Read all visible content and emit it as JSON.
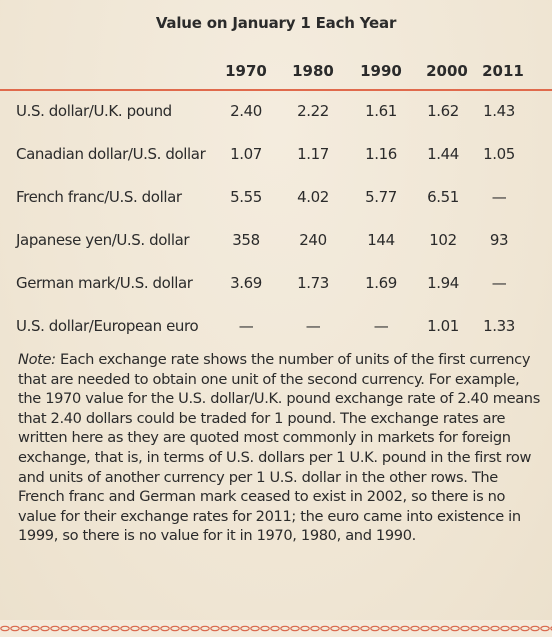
{
  "title": "Value on January 1 Each Year",
  "years": [
    "1970",
    "1980",
    "1990",
    "2000",
    "2011"
  ],
  "rows": [
    {
      "label": "U.S. dollar/U.K. pound",
      "values": [
        "2.40",
        "2.22",
        "1.61",
        "1.62",
        "1.43"
      ]
    },
    {
      "label": "Canadian dollar/U.S. dollar",
      "values": [
        "1.07",
        "1.17",
        "1.16",
        "1.44",
        "1.05"
      ]
    },
    {
      "label": "French franc/U.S. dollar",
      "values": [
        "5.55",
        "4.02",
        "5.77",
        "6.51",
        "—"
      ]
    },
    {
      "label": "Japanese yen/U.S. dollar",
      "values": [
        "358",
        "240",
        "144",
        "102",
        "93"
      ]
    },
    {
      "label": "German mark/U.S. dollar",
      "values": [
        "3.69",
        "1.73",
        "1.69",
        "1.94",
        "—"
      ]
    },
    {
      "label": "U.S. dollar/European euro",
      "values": [
        "—",
        "—",
        "—",
        "1.01",
        "1.33"
      ]
    }
  ],
  "note": {
    "lead": "Note:",
    "text": " Each exchange rate shows the number of units of the first currency that are needed to obtain one unit of the second currency. For example, the 1970 value for the U.S. dollar/U.K. pound exchange rate of 2.40 means that 2.40 dollars could be traded for 1 pound. The exchange rates are written here as they are quoted most commonly in markets for foreign exchange, that is, in terms of U.S. dollars per 1 U.K. pound in the first row and units of another currency per 1 U.S. dollar in the other rows. The French franc and German mark ceased to exist in 2002, so there is no value for their exchange rates for 2011; the euro came into existence in 1999, so there is no value for it in 1970, 1980, and 1990."
  },
  "colors": {
    "accent": "#e06a4c",
    "background": "#f1e9d9"
  }
}
